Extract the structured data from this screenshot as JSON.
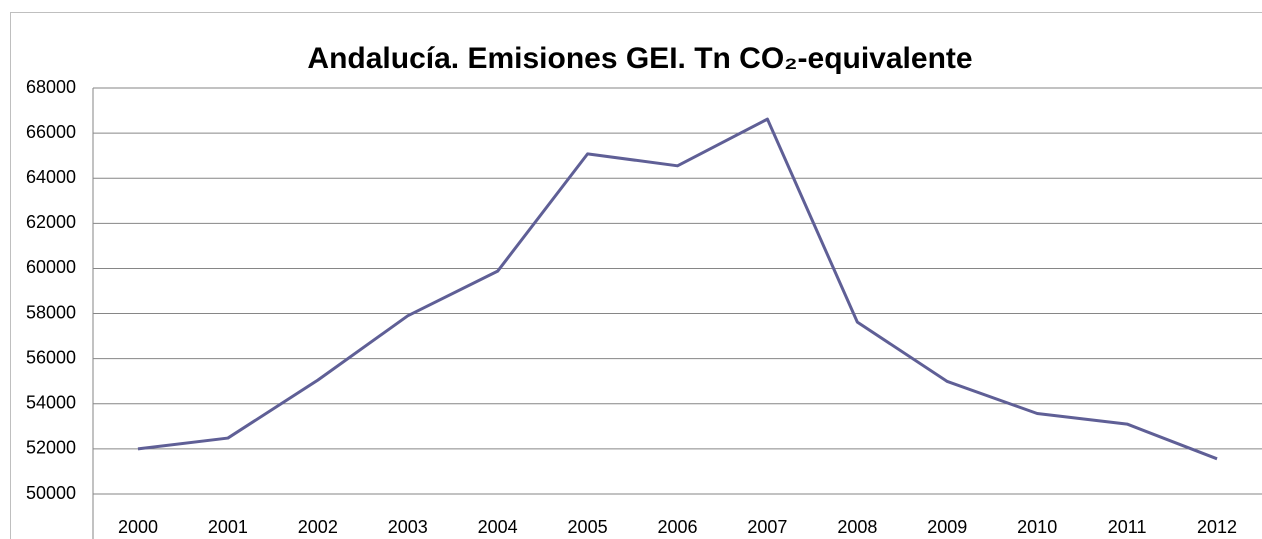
{
  "chart_data": {
    "type": "line",
    "title": "Andalucía. Emisiones GEI. Tn CO₂-equivalente",
    "categories": [
      "2000",
      "2001",
      "2002",
      "2003",
      "2004",
      "2005",
      "2006",
      "2007",
      "2008",
      "2009",
      "2010",
      "2011",
      "2012"
    ],
    "values": [
      52000,
      52480,
      55050,
      57900,
      59880,
      65080,
      64550,
      66620,
      57620,
      54990,
      53570,
      53100,
      51560
    ],
    "color": "#5f5f96",
    "ylim": [
      50000,
      68000
    ],
    "yticks": [
      50000,
      52000,
      54000,
      56000,
      58000,
      60000,
      62000,
      64000,
      66000,
      68000
    ],
    "grid": true
  }
}
